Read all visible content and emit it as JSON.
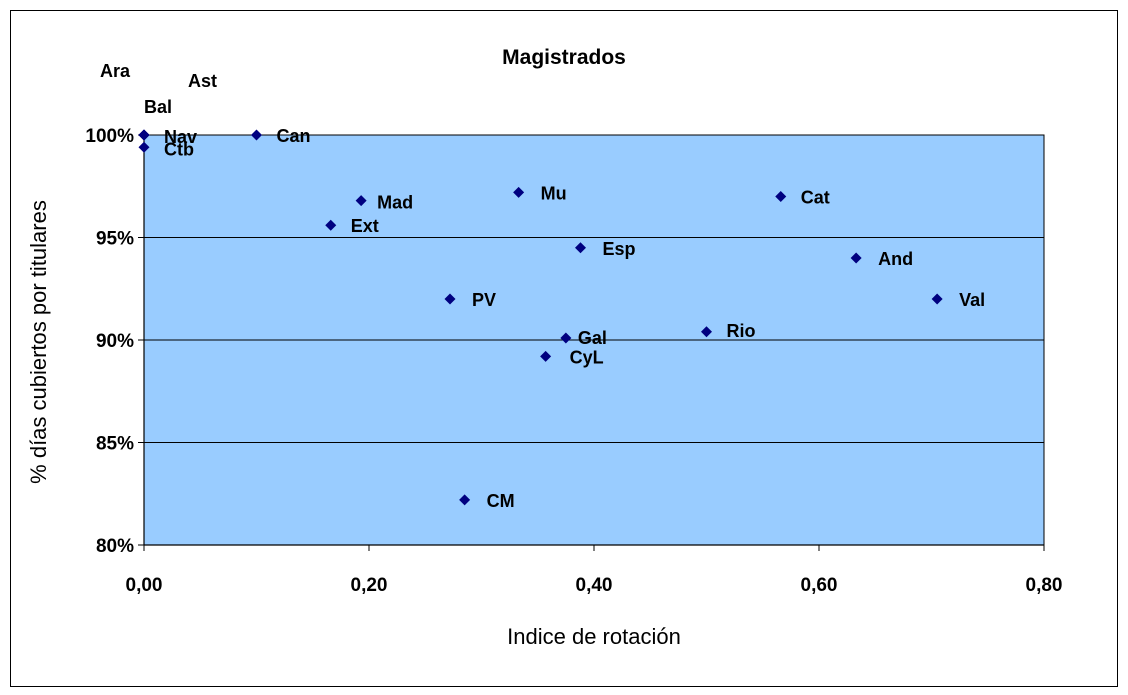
{
  "chart_data": {
    "type": "scatter",
    "title": "Magistrados",
    "xlabel": "Indice de rotación",
    "ylabel": "% días cubiertos por titulares",
    "xlim": [
      0,
      0.8
    ],
    "ylim": [
      0.8,
      1.0
    ],
    "x_ticks": [
      {
        "value": 0.0,
        "label": "0,00"
      },
      {
        "value": 0.2,
        "label": "0,20"
      },
      {
        "value": 0.4,
        "label": "0,40"
      },
      {
        "value": 0.6,
        "label": "0,60"
      },
      {
        "value": 0.8,
        "label": "0,80"
      }
    ],
    "y_ticks": [
      {
        "value": 0.8,
        "label": "80%"
      },
      {
        "value": 0.85,
        "label": "85%"
      },
      {
        "value": 0.9,
        "label": "90%"
      },
      {
        "value": 0.95,
        "label": "95%"
      },
      {
        "value": 1.0,
        "label": "100%"
      }
    ],
    "grid": "horizontal",
    "marker": "diamond",
    "colors": {
      "plot_area": "#99ccff",
      "marker": "#000080",
      "gridline": "#000000"
    },
    "points": [
      {
        "label": "Ara",
        "x": 0.0,
        "y": 1.0
      },
      {
        "label": "Ast",
        "x": 0.0,
        "y": 1.0
      },
      {
        "label": "Bal",
        "x": 0.0,
        "y": 1.0
      },
      {
        "label": "Nav",
        "x": 0.0,
        "y": 1.0
      },
      {
        "label": "Ctb",
        "x": 0.0,
        "y": 0.994
      },
      {
        "label": "Can",
        "x": 0.1,
        "y": 1.0
      },
      {
        "label": "Mad",
        "x": 0.193,
        "y": 0.968
      },
      {
        "label": "Ext",
        "x": 0.166,
        "y": 0.956
      },
      {
        "label": "Mu",
        "x": 0.333,
        "y": 0.972
      },
      {
        "label": "Cat",
        "x": 0.566,
        "y": 0.97
      },
      {
        "label": "Esp",
        "x": 0.388,
        "y": 0.945
      },
      {
        "label": "And",
        "x": 0.633,
        "y": 0.94
      },
      {
        "label": "PV",
        "x": 0.272,
        "y": 0.92
      },
      {
        "label": "Val",
        "x": 0.705,
        "y": 0.92
      },
      {
        "label": "Gal",
        "x": 0.375,
        "y": 0.901
      },
      {
        "label": "Rio",
        "x": 0.5,
        "y": 0.904
      },
      {
        "label": "CyL",
        "x": 0.357,
        "y": 0.892
      },
      {
        "label": "CM",
        "x": 0.285,
        "y": 0.822
      }
    ]
  }
}
